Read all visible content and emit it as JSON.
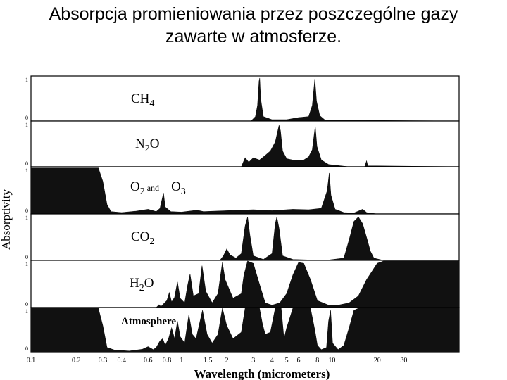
{
  "slide": {
    "title_line1": "Absorpcja promieniowania przez poszczególne gazy",
    "title_line2": "zawarte w atmosferze."
  },
  "chart_data": {
    "type": "area",
    "title": "",
    "xlabel": "Wavelength (micrometers)",
    "ylabel": "Absorptivity",
    "x_scale": "log",
    "xlim": [
      0.1,
      70
    ],
    "ylim": [
      0,
      1
    ],
    "x_ticks": [
      0.1,
      0.2,
      0.3,
      0.4,
      0.6,
      0.8,
      1,
      1.5,
      2,
      3,
      4,
      5,
      6,
      8,
      10,
      20,
      30
    ],
    "x_tick_labels": [
      "0.1",
      "0.2",
      "0.3",
      "0.4",
      "0.6",
      "0.8",
      "1",
      "1.5",
      "2",
      "3",
      "4",
      "5",
      "6",
      "8",
      "10",
      "20",
      "30"
    ],
    "y_tick_labels": [
      "0",
      "1"
    ],
    "grid": false,
    "legend": "none",
    "fill_color": "#111111",
    "series": [
      {
        "name": "CH4",
        "name_main": "CH",
        "name_sub": "4",
        "points": [
          [
            0.1,
            0
          ],
          [
            2.9,
            0
          ],
          [
            3.1,
            0.1
          ],
          [
            3.2,
            0.35
          ],
          [
            3.28,
            0.9
          ],
          [
            3.31,
            0.97
          ],
          [
            3.36,
            0.5
          ],
          [
            3.5,
            0.1
          ],
          [
            4,
            0.03
          ],
          [
            5,
            0.03
          ],
          [
            6,
            0.08
          ],
          [
            7,
            0.1
          ],
          [
            7.4,
            0.35
          ],
          [
            7.7,
            0.95
          ],
          [
            7.9,
            0.45
          ],
          [
            8.3,
            0.12
          ],
          [
            9,
            0.02
          ],
          [
            70,
            0
          ]
        ]
      },
      {
        "name": "N2O",
        "name_main": "N",
        "name_sub": "2",
        "name_tail": "O",
        "points": [
          [
            0.1,
            0
          ],
          [
            2.5,
            0
          ],
          [
            2.65,
            0.2
          ],
          [
            2.8,
            0.1
          ],
          [
            3.0,
            0.2
          ],
          [
            3.3,
            0.15
          ],
          [
            3.6,
            0.25
          ],
          [
            3.9,
            0.35
          ],
          [
            4.2,
            0.55
          ],
          [
            4.45,
            0.92
          ],
          [
            4.55,
            0.8
          ],
          [
            4.7,
            0.35
          ],
          [
            5.0,
            0.18
          ],
          [
            5.5,
            0.15
          ],
          [
            6.5,
            0.15
          ],
          [
            7.0,
            0.22
          ],
          [
            7.4,
            0.38
          ],
          [
            7.75,
            0.9
          ],
          [
            7.95,
            0.45
          ],
          [
            8.5,
            0.15
          ],
          [
            9.5,
            0.05
          ],
          [
            13,
            0
          ],
          [
            16.5,
            0
          ],
          [
            17,
            0.13
          ],
          [
            17.3,
            0.02
          ],
          [
            70,
            0
          ]
        ]
      },
      {
        "name": "O2 and O3",
        "name_main": "O",
        "name_sub": "2",
        "name_and": "and",
        "name_main2": "O",
        "name_sub2": "3",
        "points": [
          [
            0.1,
            0.99
          ],
          [
            0.28,
            0.99
          ],
          [
            0.3,
            0.7
          ],
          [
            0.32,
            0.2
          ],
          [
            0.34,
            0.05
          ],
          [
            0.4,
            0.03
          ],
          [
            0.5,
            0.06
          ],
          [
            0.6,
            0.1
          ],
          [
            0.68,
            0.05
          ],
          [
            0.72,
            0.12
          ],
          [
            0.76,
            0.45
          ],
          [
            0.78,
            0.15
          ],
          [
            0.85,
            0.05
          ],
          [
            1.0,
            0.04
          ],
          [
            1.27,
            0.08
          ],
          [
            1.4,
            0.05
          ],
          [
            2,
            0.07
          ],
          [
            3,
            0.09
          ],
          [
            4,
            0.07
          ],
          [
            5.5,
            0.1
          ],
          [
            7,
            0.09
          ],
          [
            8.5,
            0.12
          ],
          [
            9.3,
            0.5
          ],
          [
            9.6,
            0.88
          ],
          [
            9.85,
            0.4
          ],
          [
            10.5,
            0.1
          ],
          [
            12,
            0.03
          ],
          [
            14,
            0.02
          ],
          [
            16,
            0.1
          ],
          [
            17,
            0.03
          ],
          [
            20,
            0
          ],
          [
            70,
            0
          ]
        ]
      },
      {
        "name": "CO2",
        "name_main": "CO",
        "name_sub": "2",
        "points": [
          [
            0.1,
            0
          ],
          [
            1.8,
            0
          ],
          [
            1.9,
            0.1
          ],
          [
            2.0,
            0.25
          ],
          [
            2.1,
            0.12
          ],
          [
            2.3,
            0.05
          ],
          [
            2.5,
            0.15
          ],
          [
            2.65,
            0.75
          ],
          [
            2.75,
            0.95
          ],
          [
            2.85,
            0.55
          ],
          [
            3.0,
            0.1
          ],
          [
            3.5,
            0.02
          ],
          [
            4.0,
            0.15
          ],
          [
            4.2,
            0.8
          ],
          [
            4.3,
            0.95
          ],
          [
            4.45,
            0.7
          ],
          [
            4.7,
            0.1
          ],
          [
            5.5,
            0.02
          ],
          [
            9,
            0
          ],
          [
            12,
            0.05
          ],
          [
            13,
            0.45
          ],
          [
            14,
            0.85
          ],
          [
            15,
            0.95
          ],
          [
            16,
            0.8
          ],
          [
            17,
            0.5
          ],
          [
            18,
            0.2
          ],
          [
            19,
            0.05
          ],
          [
            22,
            0
          ],
          [
            70,
            0
          ]
        ]
      },
      {
        "name": "H2O",
        "name_main": "H",
        "name_sub": "2",
        "name_tail": "O",
        "points": [
          [
            0.1,
            0
          ],
          [
            0.68,
            0
          ],
          [
            0.71,
            0.06
          ],
          [
            0.73,
            0.02
          ],
          [
            0.8,
            0.15
          ],
          [
            0.83,
            0.32
          ],
          [
            0.86,
            0.12
          ],
          [
            0.9,
            0.22
          ],
          [
            0.94,
            0.55
          ],
          [
            0.98,
            0.2
          ],
          [
            1.05,
            0.1
          ],
          [
            1.1,
            0.48
          ],
          [
            1.14,
            0.72
          ],
          [
            1.2,
            0.25
          ],
          [
            1.3,
            0.3
          ],
          [
            1.37,
            0.9
          ],
          [
            1.45,
            0.35
          ],
          [
            1.6,
            0.1
          ],
          [
            1.75,
            0.3
          ],
          [
            1.87,
            0.97
          ],
          [
            1.95,
            0.6
          ],
          [
            2.2,
            0.2
          ],
          [
            2.5,
            0.3
          ],
          [
            2.6,
            0.7
          ],
          [
            2.75,
            1
          ],
          [
            3.0,
            0.95
          ],
          [
            3.3,
            0.5
          ],
          [
            3.6,
            0.1
          ],
          [
            4.0,
            0.05
          ],
          [
            4.5,
            0.1
          ],
          [
            5.0,
            0.3
          ],
          [
            5.5,
            0.7
          ],
          [
            6.0,
            0.97
          ],
          [
            6.5,
            0.95
          ],
          [
            7.2,
            0.6
          ],
          [
            8.0,
            0.15
          ],
          [
            9.5,
            0.05
          ],
          [
            11,
            0.05
          ],
          [
            13,
            0.1
          ],
          [
            15,
            0.25
          ],
          [
            17,
            0.6
          ],
          [
            20,
            0.95
          ],
          [
            22,
            1
          ],
          [
            70,
            1
          ]
        ]
      },
      {
        "name": "Atmosphere",
        "name_main": "Atmosphere",
        "points": [
          [
            0.1,
            1
          ],
          [
            0.28,
            1
          ],
          [
            0.3,
            0.6
          ],
          [
            0.32,
            0.1
          ],
          [
            0.36,
            0.04
          ],
          [
            0.45,
            0.02
          ],
          [
            0.55,
            0.06
          ],
          [
            0.6,
            0.12
          ],
          [
            0.65,
            0.05
          ],
          [
            0.68,
            0.1
          ],
          [
            0.72,
            0.25
          ],
          [
            0.75,
            0.3
          ],
          [
            0.78,
            0.15
          ],
          [
            0.82,
            0.3
          ],
          [
            0.86,
            0.55
          ],
          [
            0.9,
            0.3
          ],
          [
            0.94,
            0.7
          ],
          [
            0.98,
            0.35
          ],
          [
            1.05,
            0.2
          ],
          [
            1.12,
            0.85
          ],
          [
            1.18,
            0.4
          ],
          [
            1.25,
            0.3
          ],
          [
            1.38,
            0.95
          ],
          [
            1.48,
            0.4
          ],
          [
            1.6,
            0.2
          ],
          [
            1.75,
            0.4
          ],
          [
            1.87,
            1
          ],
          [
            2.0,
            0.6
          ],
          [
            2.2,
            0.3
          ],
          [
            2.5,
            0.45
          ],
          [
            2.65,
            1
          ],
          [
            3.3,
            1
          ],
          [
            3.45,
            0.65
          ],
          [
            3.6,
            0.4
          ],
          [
            3.9,
            0.45
          ],
          [
            4.2,
            1
          ],
          [
            4.6,
            1
          ],
          [
            4.8,
            0.3
          ],
          [
            5.0,
            0.55
          ],
          [
            5.5,
            1
          ],
          [
            7.2,
            1
          ],
          [
            7.7,
            0.5
          ],
          [
            8.0,
            0.15
          ],
          [
            8.5,
            0.05
          ],
          [
            9.2,
            0.1
          ],
          [
            9.5,
            0.7
          ],
          [
            9.8,
            0.95
          ],
          [
            10.1,
            0.2
          ],
          [
            11,
            0.05
          ],
          [
            12,
            0.15
          ],
          [
            13,
            0.55
          ],
          [
            14,
            0.95
          ],
          [
            15,
            1
          ],
          [
            70,
            1
          ]
        ]
      }
    ]
  }
}
